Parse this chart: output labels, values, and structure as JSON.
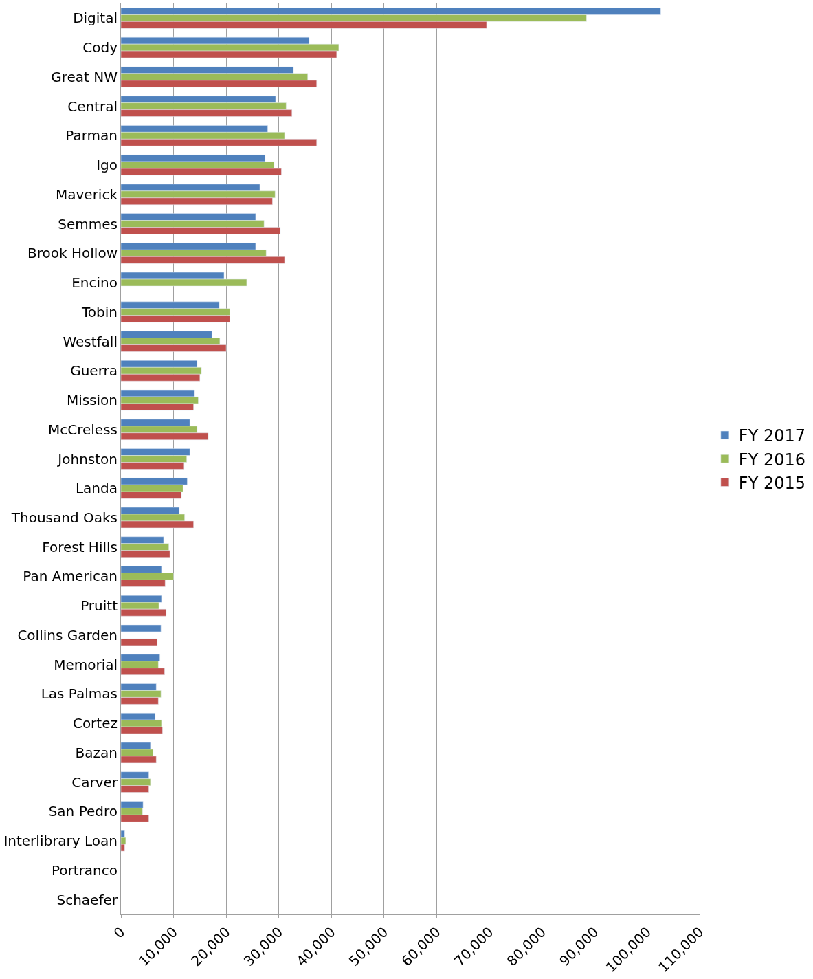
{
  "chart_data": {
    "type": "bar",
    "orientation": "horizontal",
    "categories": [
      "Digital",
      "Cody",
      "Great NW",
      "Central",
      "Parman",
      "Igo",
      "Maverick",
      "Semmes",
      "Brook Hollow",
      "Encino",
      "Tobin",
      "Westfall",
      "Guerra",
      "Mission",
      "McCreless",
      "Johnston",
      "Landa",
      "Thousand Oaks",
      "Forest Hills",
      "Pan American",
      "Pruitt",
      "Collins Garden",
      "Memorial",
      "Las Palmas",
      "Cortez",
      "Bazan",
      "Carver",
      "San Pedro",
      "Interlibrary Loan",
      "Portranco",
      "Schaefer"
    ],
    "series": [
      {
        "name": "FY 2017",
        "color": "#4f81bd",
        "values": [
          102600,
          35800,
          32800,
          29400,
          27900,
          27400,
          26400,
          25600,
          25600,
          19600,
          18700,
          17300,
          14500,
          14000,
          13100,
          13100,
          12600,
          11100,
          8100,
          7700,
          7700,
          7600,
          7400,
          6700,
          6500,
          5600,
          5300,
          4200,
          700,
          null,
          null
        ]
      },
      {
        "name": "FY 2016",
        "color": "#9bbb59",
        "values": [
          88500,
          41400,
          35500,
          31400,
          31100,
          29100,
          29300,
          27200,
          27600,
          23900,
          20700,
          18800,
          15300,
          14700,
          14500,
          12500,
          11800,
          12100,
          9100,
          10000,
          7200,
          null,
          7100,
          7600,
          7700,
          6100,
          5600,
          4100,
          900,
          null,
          null
        ]
      },
      {
        "name": "FY 2015",
        "color": "#c0504d",
        "values": [
          69500,
          41000,
          37200,
          32500,
          37200,
          30500,
          28800,
          30300,
          31100,
          null,
          20700,
          20000,
          15000,
          13800,
          16600,
          12000,
          11500,
          13800,
          9300,
          8400,
          8600,
          6900,
          8300,
          7100,
          7900,
          6700,
          5300,
          5300,
          700,
          null,
          null
        ]
      }
    ],
    "xlim": [
      0,
      110000
    ],
    "xticks": [
      {
        "value": 0,
        "label": "0"
      },
      {
        "value": 10000,
        "label": "10,000"
      },
      {
        "value": 20000,
        "label": "20,000"
      },
      {
        "value": 30000,
        "label": "30,000"
      },
      {
        "value": 40000,
        "label": "40,000"
      },
      {
        "value": 50000,
        "label": "50,000"
      },
      {
        "value": 60000,
        "label": "60,000"
      },
      {
        "value": 70000,
        "label": "70,000"
      },
      {
        "value": 80000,
        "label": "80,000"
      },
      {
        "value": 90000,
        "label": "90,000"
      },
      {
        "value": 100000,
        "label": "100,000"
      },
      {
        "value": 110000,
        "label": "110,000"
      }
    ],
    "grid": "x",
    "legend": "right"
  }
}
